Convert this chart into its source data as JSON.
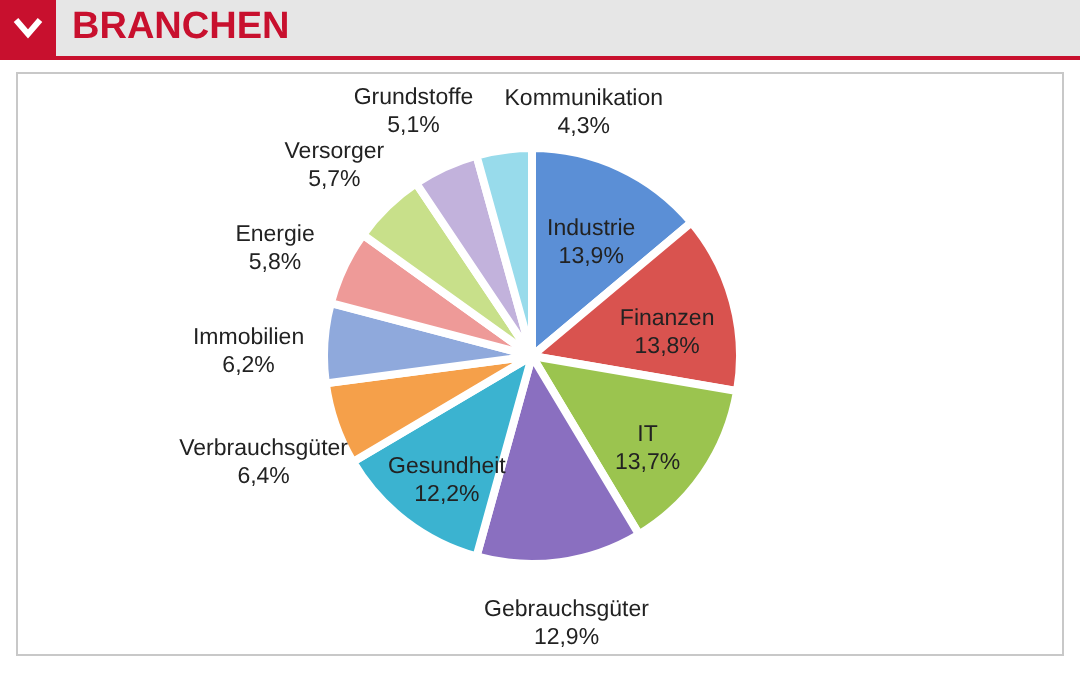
{
  "chart_data": {
    "type": "pie",
    "title": "BRANCHEN",
    "categories": [
      "Industrie",
      "Finanzen",
      "IT",
      "Gebrauchsgüter",
      "Gesundheit",
      "Verbrauchsgüter",
      "Immobilien",
      "Energie",
      "Versorger",
      "Grundstoffe",
      "Kommunikation"
    ],
    "values": [
      13.9,
      13.8,
      13.7,
      12.9,
      12.2,
      6.4,
      6.2,
      5.8,
      5.7,
      5.1,
      4.3
    ],
    "value_labels": [
      "13,9%",
      "13,8%",
      "13,7%",
      "12,9%",
      "12,2%",
      "6,4%",
      "6,2%",
      "5,8%",
      "5,7%",
      "5,1%",
      "4,3%"
    ],
    "colors": [
      "#5b8fd6",
      "#d9534f",
      "#9bc44f",
      "#8a6fc0",
      "#3bb3d0",
      "#f5a04a",
      "#8fa9dc",
      "#ee9a98",
      "#c8e08a",
      "#c2b2dc",
      "#98dbeb"
    ],
    "legend": false
  }
}
